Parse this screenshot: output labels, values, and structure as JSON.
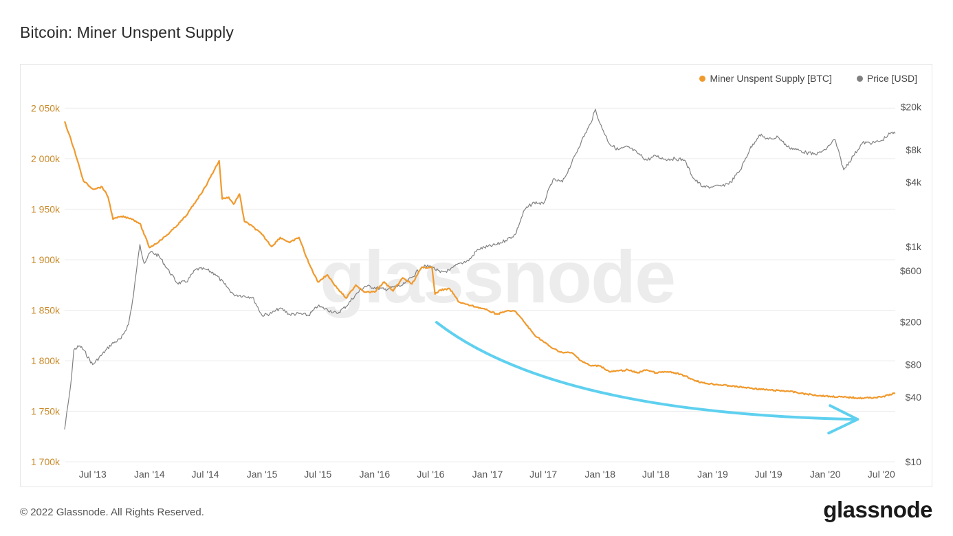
{
  "page": {
    "title": "Bitcoin: Miner Unspent Supply",
    "footer": "© 2022 Glassnode. All Rights Reserved.",
    "brand": "glassnode",
    "watermark": "glassnode"
  },
  "legend": [
    {
      "label": "Miner Unspent Supply [BTC]",
      "color": "#f09a2e"
    },
    {
      "label": "Price [USD]",
      "color": "#808080"
    }
  ],
  "chart_data": {
    "type": "line",
    "title": "Bitcoin: Miner Unspent Supply",
    "x_ticks": [
      "Jul '13",
      "Jan '14",
      "Jul '14",
      "Jan '15",
      "Jul '15",
      "Jan '16",
      "Jul '16",
      "Jan '17",
      "Jul '17",
      "Jan '18",
      "Jul '18",
      "Jan '19",
      "Jul '19",
      "Jan '20",
      "Jul '20"
    ],
    "x_range": [
      "2013-04-01",
      "2020-08-15"
    ],
    "y_left": {
      "ylim": [
        1700,
        2070
      ],
      "unit": "k BTC",
      "ticks": [
        1700,
        1750,
        1800,
        1850,
        1900,
        1950,
        2000,
        2050
      ],
      "tick_labels": [
        "1 700k",
        "1 750k",
        "1 800k",
        "1 850k",
        "1 900k",
        "1 950k",
        "2 000k",
        "2 050k"
      ],
      "color": "#c88a2a"
    },
    "y_right": {
      "scale": "log",
      "ylim": [
        10,
        30000
      ],
      "ticks": [
        10,
        40,
        80,
        200,
        600,
        1000,
        4000,
        8000,
        20000
      ],
      "tick_labels": [
        "$10",
        "$40",
        "$80",
        "$200",
        "$600",
        "$1k",
        "$4k",
        "$8k",
        "$20k"
      ],
      "color": "#555555"
    },
    "grid": true,
    "legend_position": "top-right",
    "series": [
      {
        "name": "Miner Unspent Supply [BTC]",
        "axis": "left",
        "color": "#f09a2e",
        "points": [
          [
            "2013-04-01",
            2037
          ],
          [
            "2013-05-01",
            2010
          ],
          [
            "2013-06-01",
            1978
          ],
          [
            "2013-07-01",
            1970
          ],
          [
            "2013-08-01",
            1972
          ],
          [
            "2013-08-20",
            1962
          ],
          [
            "2013-09-05",
            1940
          ],
          [
            "2013-10-01",
            1943
          ],
          [
            "2013-11-01",
            1941
          ],
          [
            "2013-12-01",
            1936
          ],
          [
            "2014-01-01",
            1912
          ],
          [
            "2014-02-01",
            1918
          ],
          [
            "2014-03-01",
            1925
          ],
          [
            "2014-04-01",
            1934
          ],
          [
            "2014-05-01",
            1944
          ],
          [
            "2014-06-01",
            1958
          ],
          [
            "2014-07-01",
            1972
          ],
          [
            "2014-08-01",
            1990
          ],
          [
            "2014-08-15",
            1998
          ],
          [
            "2014-08-25",
            1960
          ],
          [
            "2014-09-15",
            1962
          ],
          [
            "2014-10-01",
            1955
          ],
          [
            "2014-10-20",
            1965
          ],
          [
            "2014-11-05",
            1938
          ],
          [
            "2014-12-01",
            1933
          ],
          [
            "2015-01-01",
            1925
          ],
          [
            "2015-02-01",
            1913
          ],
          [
            "2015-03-01",
            1922
          ],
          [
            "2015-04-01",
            1917
          ],
          [
            "2015-05-01",
            1922
          ],
          [
            "2015-06-01",
            1897
          ],
          [
            "2015-07-01",
            1878
          ],
          [
            "2015-08-01",
            1885
          ],
          [
            "2015-09-01",
            1872
          ],
          [
            "2015-10-01",
            1862
          ],
          [
            "2015-11-01",
            1875
          ],
          [
            "2015-12-01",
            1868
          ],
          [
            "2016-01-01",
            1868
          ],
          [
            "2016-02-01",
            1878
          ],
          [
            "2016-03-01",
            1869
          ],
          [
            "2016-04-01",
            1882
          ],
          [
            "2016-05-01",
            1876
          ],
          [
            "2016-06-01",
            1892
          ],
          [
            "2016-07-05",
            1893
          ],
          [
            "2016-07-15",
            1866
          ],
          [
            "2016-08-01",
            1870
          ],
          [
            "2016-09-01",
            1871
          ],
          [
            "2016-10-01",
            1858
          ],
          [
            "2016-11-01",
            1855
          ],
          [
            "2016-12-01",
            1853
          ],
          [
            "2017-01-01",
            1850
          ],
          [
            "2017-02-01",
            1846
          ],
          [
            "2017-03-01",
            1849
          ],
          [
            "2017-04-01",
            1849
          ],
          [
            "2017-05-01",
            1838
          ],
          [
            "2017-06-01",
            1826
          ],
          [
            "2017-07-01",
            1819
          ],
          [
            "2017-08-01",
            1812
          ],
          [
            "2017-09-01",
            1808
          ],
          [
            "2017-10-01",
            1808
          ],
          [
            "2017-11-01",
            1800
          ],
          [
            "2017-12-01",
            1795
          ],
          [
            "2018-01-01",
            1795
          ],
          [
            "2018-02-01",
            1789
          ],
          [
            "2018-03-01",
            1790
          ],
          [
            "2018-04-01",
            1791
          ],
          [
            "2018-05-01",
            1788
          ],
          [
            "2018-06-01",
            1791
          ],
          [
            "2018-07-01",
            1788
          ],
          [
            "2018-08-01",
            1789
          ],
          [
            "2018-09-01",
            1788
          ],
          [
            "2018-10-01",
            1785
          ],
          [
            "2018-11-01",
            1781
          ],
          [
            "2018-12-01",
            1778
          ],
          [
            "2019-01-01",
            1777
          ],
          [
            "2019-03-01",
            1775
          ],
          [
            "2019-05-01",
            1773
          ],
          [
            "2019-07-01",
            1771
          ],
          [
            "2019-09-01",
            1770
          ],
          [
            "2019-11-01",
            1767
          ],
          [
            "2020-01-01",
            1765
          ],
          [
            "2020-03-01",
            1764
          ],
          [
            "2020-05-01",
            1763
          ],
          [
            "2020-07-01",
            1764
          ],
          [
            "2020-08-15",
            1768
          ]
        ]
      },
      {
        "name": "Price [USD]",
        "axis": "right",
        "color": "#808080",
        "points": [
          [
            "2013-04-01",
            20
          ],
          [
            "2013-04-20",
            50
          ],
          [
            "2013-05-01",
            110
          ],
          [
            "2013-05-20",
            120
          ],
          [
            "2013-06-01",
            110
          ],
          [
            "2013-07-01",
            80
          ],
          [
            "2013-08-01",
            100
          ],
          [
            "2013-09-01",
            125
          ],
          [
            "2013-10-01",
            140
          ],
          [
            "2013-10-25",
            190
          ],
          [
            "2013-11-10",
            350
          ],
          [
            "2013-11-20",
            600
          ],
          [
            "2013-12-01",
            1050
          ],
          [
            "2013-12-15",
            700
          ],
          [
            "2014-01-05",
            900
          ],
          [
            "2014-02-01",
            820
          ],
          [
            "2014-03-01",
            620
          ],
          [
            "2014-04-01",
            460
          ],
          [
            "2014-05-01",
            470
          ],
          [
            "2014-06-01",
            620
          ],
          [
            "2014-07-01",
            620
          ],
          [
            "2014-08-01",
            560
          ],
          [
            "2014-09-01",
            450
          ],
          [
            "2014-10-01",
            360
          ],
          [
            "2014-11-01",
            350
          ],
          [
            "2014-12-01",
            340
          ],
          [
            "2015-01-01",
            230
          ],
          [
            "2015-02-01",
            240
          ],
          [
            "2015-03-01",
            270
          ],
          [
            "2015-04-01",
            235
          ],
          [
            "2015-05-01",
            238
          ],
          [
            "2015-06-01",
            230
          ],
          [
            "2015-07-01",
            280
          ],
          [
            "2015-08-01",
            260
          ],
          [
            "2015-09-01",
            240
          ],
          [
            "2015-10-01",
            280
          ],
          [
            "2015-11-01",
            360
          ],
          [
            "2015-12-01",
            430
          ],
          [
            "2016-01-01",
            420
          ],
          [
            "2016-02-01",
            400
          ],
          [
            "2016-03-01",
            420
          ],
          [
            "2016-04-01",
            440
          ],
          [
            "2016-05-01",
            520
          ],
          [
            "2016-06-01",
            650
          ],
          [
            "2016-07-01",
            660
          ],
          [
            "2016-08-01",
            575
          ],
          [
            "2016-09-01",
            605
          ],
          [
            "2016-10-01",
            700
          ],
          [
            "2016-11-01",
            740
          ],
          [
            "2016-12-01",
            950
          ],
          [
            "2017-01-01",
            1000
          ],
          [
            "2017-02-01",
            1050
          ],
          [
            "2017-03-01",
            1150
          ],
          [
            "2017-04-01",
            1300
          ],
          [
            "2017-05-01",
            2200
          ],
          [
            "2017-06-01",
            2600
          ],
          [
            "2017-07-01",
            2500
          ],
          [
            "2017-08-01",
            4200
          ],
          [
            "2017-09-01",
            4000
          ],
          [
            "2017-10-01",
            6000
          ],
          [
            "2017-11-01",
            9500
          ],
          [
            "2017-12-01",
            14000
          ],
          [
            "2017-12-17",
            19000
          ],
          [
            "2018-01-01",
            14000
          ],
          [
            "2018-02-01",
            9000
          ],
          [
            "2018-03-01",
            8000
          ],
          [
            "2018-04-01",
            8500
          ],
          [
            "2018-05-01",
            7500
          ],
          [
            "2018-06-01",
            6400
          ],
          [
            "2018-07-01",
            7000
          ],
          [
            "2018-08-01",
            6500
          ],
          [
            "2018-09-01",
            6600
          ],
          [
            "2018-10-01",
            6400
          ],
          [
            "2018-11-01",
            4300
          ],
          [
            "2018-12-01",
            3600
          ],
          [
            "2019-01-01",
            3600
          ],
          [
            "2019-02-01",
            3700
          ],
          [
            "2019-03-01",
            4000
          ],
          [
            "2019-04-01",
            5200
          ],
          [
            "2019-05-01",
            8000
          ],
          [
            "2019-06-01",
            11000
          ],
          [
            "2019-07-01",
            10000
          ],
          [
            "2019-08-01",
            10500
          ],
          [
            "2019-09-01",
            8500
          ],
          [
            "2019-10-01",
            8000
          ],
          [
            "2019-11-01",
            7500
          ],
          [
            "2019-12-01",
            7200
          ],
          [
            "2020-01-01",
            8000
          ],
          [
            "2020-02-01",
            10000
          ],
          [
            "2020-03-01",
            5200
          ],
          [
            "2020-04-01",
            7000
          ],
          [
            "2020-05-01",
            9300
          ],
          [
            "2020-06-01",
            9200
          ],
          [
            "2020-07-01",
            9700
          ],
          [
            "2020-08-01",
            11500
          ],
          [
            "2020-08-15",
            11300
          ]
        ]
      }
    ],
    "annotations": [
      {
        "type": "arrow",
        "color": "#5fd0ef",
        "from": [
          "2016-07-20",
          1838
        ],
        "to": [
          "2020-04-15",
          1742
        ]
      }
    ]
  }
}
